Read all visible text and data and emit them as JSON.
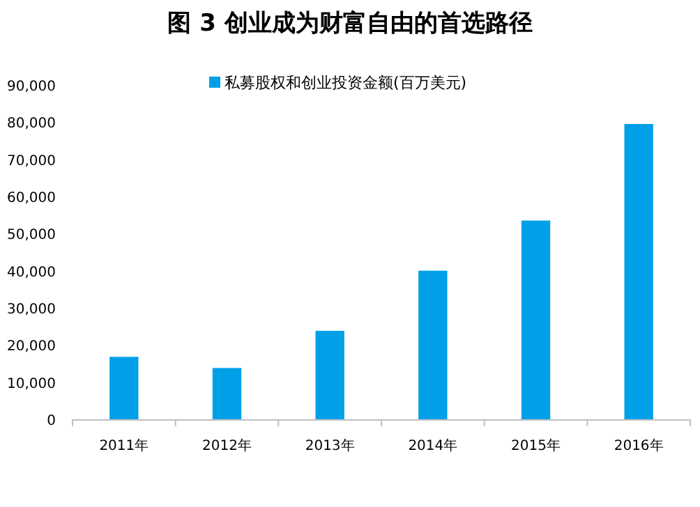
{
  "chart_data": {
    "type": "bar",
    "title": "图 3 创业成为财富自由的首选路径",
    "categories": [
      "2011年",
      "2012年",
      "2013年",
      "2014年",
      "2015年",
      "2016年"
    ],
    "series": [
      {
        "name": "私募股权和创业投资金额(百万美元)",
        "color": "#00a0e9",
        "values": [
          16800,
          13800,
          23800,
          40000,
          53500,
          79500
        ]
      }
    ],
    "ylim": [
      0,
      90000
    ],
    "yticks": [
      {
        "value": 0,
        "label": "0"
      },
      {
        "value": 10000,
        "label": "10,000"
      },
      {
        "value": 20000,
        "label": "20,000"
      },
      {
        "value": 30000,
        "label": "30,000"
      },
      {
        "value": 40000,
        "label": "40,000"
      },
      {
        "value": 50000,
        "label": "50,000"
      },
      {
        "value": 60000,
        "label": "60,000"
      },
      {
        "value": 70000,
        "label": "70,000"
      },
      {
        "value": 80000,
        "label": "80,000"
      },
      {
        "value": 90000,
        "label": "90,000"
      }
    ],
    "legend": "top",
    "grid": false
  }
}
